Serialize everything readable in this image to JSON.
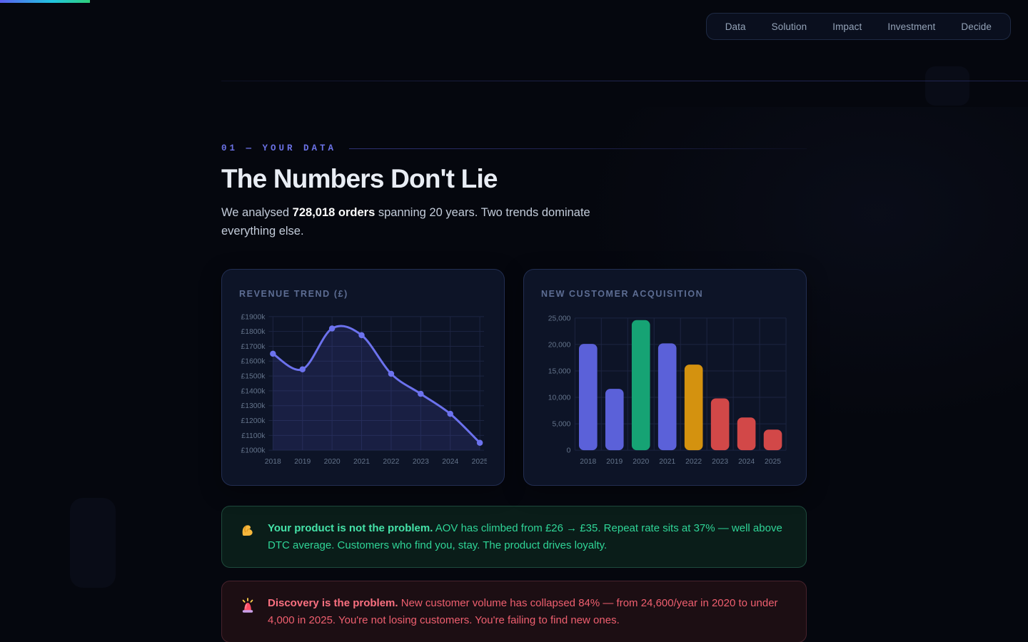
{
  "nav": {
    "items": [
      "Data",
      "Solution",
      "Impact",
      "Investment",
      "Decide"
    ]
  },
  "progress": {
    "percent_of_width": 8.75
  },
  "section": {
    "kicker": "01 — YOUR DATA",
    "title": "The Numbers Don't Lie",
    "intro_prefix": "We analysed ",
    "intro_bold": "728,018 orders",
    "intro_suffix": " spanning 20 years. Two trends dominate everything else."
  },
  "chart_data": [
    {
      "type": "line",
      "title": "REVENUE TREND (£)",
      "x": [
        "2018",
        "2019",
        "2020",
        "2021",
        "2022",
        "2023",
        "2024",
        "2025"
      ],
      "series": [
        {
          "name": "Revenue (£k)",
          "values": [
            1650,
            1545,
            1820,
            1775,
            1515,
            1380,
            1245,
            1050
          ]
        }
      ],
      "ylim": [
        1000,
        1900
      ],
      "ytick_step": 100,
      "ytick_format": {
        "prefix": "£",
        "suffix": "k"
      },
      "grid": true,
      "legend": "none",
      "line_color": "#6c72ee",
      "fill_color": "rgba(99,102,241,0.14)"
    },
    {
      "type": "bar",
      "title": "NEW CUSTOMER ACQUISITION",
      "categories": [
        "2018",
        "2019",
        "2020",
        "2021",
        "2022",
        "2023",
        "2024",
        "2025"
      ],
      "values": [
        20100,
        11600,
        24600,
        20200,
        16200,
        9800,
        6200,
        3900
      ],
      "ylim": [
        0,
        25000
      ],
      "ytick_step": 5000,
      "grid": true,
      "legend": "none",
      "bar_colors": [
        "#5b61d9",
        "#5b61d9",
        "#16a374",
        "#5b61d9",
        "#d4920f",
        "#d24848",
        "#d24848",
        "#d24848"
      ]
    }
  ],
  "callouts": [
    {
      "type": "positive",
      "icon": "muscle-icon",
      "emoji": "💪",
      "bold": "Your product is not the problem.",
      "text": " AOV has climbed from £26 → £35. Repeat rate sits at 37% — well above DTC average. Customers who find you, stay. The product drives loyalty."
    },
    {
      "type": "negative",
      "icon": "siren-icon",
      "emoji": "🚨",
      "bold": "Discovery is the problem.",
      "text": " New customer volume has collapsed 84% — from 24,600/year in 2020 to under 4,000 in 2025. You're not losing customers. You're failing to find new ones."
    }
  ],
  "colors": {
    "page_bg": "#05070e",
    "card_bg": "#0d1427",
    "accent_indigo": "#6366f1",
    "accent_green": "#16a374",
    "accent_amber": "#d4920f",
    "accent_red": "#d24848",
    "positive_text": "#34d399",
    "negative_text": "#f4707e",
    "grid_line": "#1d2542",
    "axis_text": "#64748b",
    "progress_gradient": [
      "#5b5ff0",
      "#21c5e0",
      "#2fd07a"
    ]
  }
}
